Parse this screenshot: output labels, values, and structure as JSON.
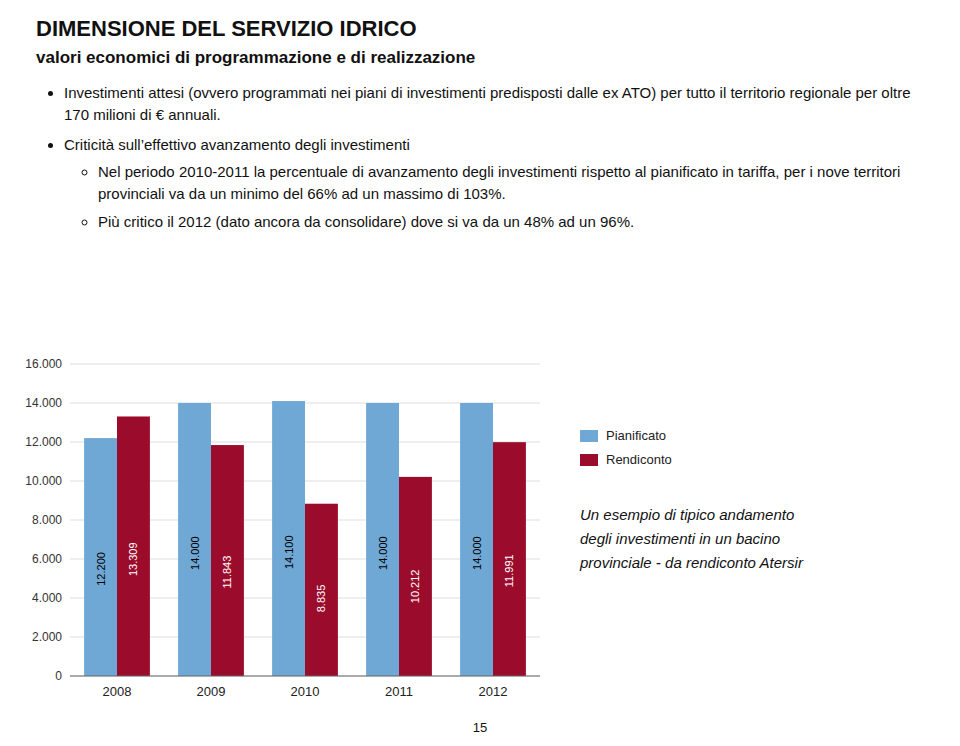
{
  "chart_data": {
    "type": "bar",
    "title": "DIMENSIONE DEL SERVIZIO IDRICO",
    "subtitle": "valori economici di programmazione e di realizzazione",
    "annotations": [
      "Investimenti attesi (ovvero programmati nei piani di investimenti predisposti dalle ex ATO) per tutto il territorio regionale per oltre 170 milioni di € annuali.",
      "Criticità sull’effettivo avanzamento degli investimenti",
      "Nel periodo 2010-2011 la percentuale di avanzamento degli investimenti rispetto al pianificato in tariffa, per i nove territori provinciali va da un minimo del 66% ad un massimo di 103%.",
      "Più critico il 2012 (dato ancora da consolidare) dove si va da un 48% ad un 96%.",
      "Un esempio di tipico andamento\ndegli investimenti in un bacino\nprovinciale - da rendiconto Atersir",
      "15"
    ],
    "categories": [
      "2008",
      "2009",
      "2010",
      "2011",
      "2012"
    ],
    "series": [
      {
        "name": "Pianificato",
        "color": "#6fa8d5",
        "values": [
          12200,
          14000,
          14100,
          14000,
          14000
        ],
        "value_labels": [
          "12.200",
          "14.000",
          "14.100",
          "14.000",
          "14.000"
        ]
      },
      {
        "name": "Rendiconto",
        "color": "#9b0c2c",
        "values": [
          13309,
          11843,
          8835,
          10212,
          11991
        ],
        "value_labels": [
          "13.309",
          "11.843",
          "8.835",
          "10.212",
          "11.991"
        ]
      }
    ],
    "ylim": [
      0,
      16000
    ],
    "yticks": [
      0,
      {
        "value": 2000,
        "label": "2.000"
      },
      {
        "value": 4000,
        "label": "4.000"
      },
      {
        "value": 6000,
        "label": "6.000"
      },
      {
        "value": 8000,
        "label": "8.000"
      },
      {
        "value": 10000,
        "label": "10.000"
      },
      {
        "value": 12000,
        "label": "12.000"
      },
      {
        "value": 14000,
        "label": "14.000"
      },
      {
        "value": 16000,
        "label": "16.000"
      }
    ],
    "grid": true,
    "legend": "right",
    "data_labels": true
  }
}
